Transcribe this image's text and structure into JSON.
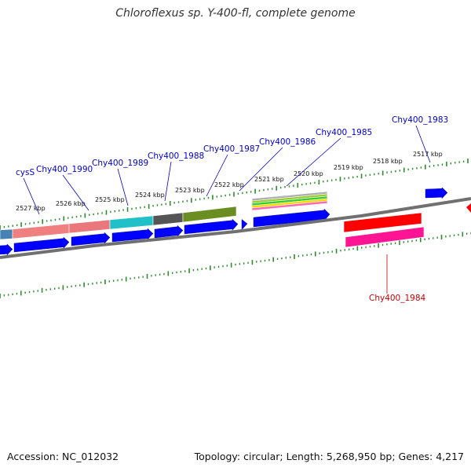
{
  "title": "Chloroflexus sp. Y-400-fl, complete genome",
  "footer": {
    "accession": "Accession: NC_012032",
    "summary": "Topology: circular; Length: 5,268,950 bp; Genes: 4,217"
  },
  "colors": {
    "backbone": "#808080",
    "tick": "#2e8b2e",
    "forward_label": "#0000cc",
    "reverse_label": "#cc0000",
    "cds_forward": "#0000ff",
    "cds_reverse": "#ff0000",
    "cds_magenta": "#ff1493"
  },
  "position_ticks": [
    {
      "id": "t2527",
      "label": "2527 kbp"
    },
    {
      "id": "t2526",
      "label": "2526 kbp"
    },
    {
      "id": "t2525",
      "label": "2525 kbp"
    },
    {
      "id": "t2524",
      "label": "2524 kbp"
    },
    {
      "id": "t2523",
      "label": "2523 kbp"
    },
    {
      "id": "t2522",
      "label": "2522 kbp"
    },
    {
      "id": "t2521",
      "label": "2521 kbp"
    },
    {
      "id": "t2520",
      "label": "2520 kbp"
    },
    {
      "id": "t2519",
      "label": "2519 kbp"
    },
    {
      "id": "t2518",
      "label": "2518 kbp"
    },
    {
      "id": "t2517",
      "label": "2517 kbp"
    }
  ],
  "gene_labels": [
    {
      "id": "g_cysS",
      "name": "cysS",
      "strand": "forward"
    },
    {
      "id": "g_1990",
      "name": "Chy400_1990",
      "strand": "forward"
    },
    {
      "id": "g_1989",
      "name": "Chy400_1989",
      "strand": "forward"
    },
    {
      "id": "g_1988",
      "name": "Chy400_1988",
      "strand": "forward"
    },
    {
      "id": "g_1987",
      "name": "Chy400_1987",
      "strand": "forward"
    },
    {
      "id": "g_1986",
      "name": "Chy400_1986",
      "strand": "forward"
    },
    {
      "id": "g_1985",
      "name": "Chy400_1985",
      "strand": "forward"
    },
    {
      "id": "g_1983",
      "name": "Chy400_1983",
      "strand": "forward"
    },
    {
      "id": "g_1984",
      "name": "Chy400_1984",
      "strand": "reverse"
    }
  ]
}
